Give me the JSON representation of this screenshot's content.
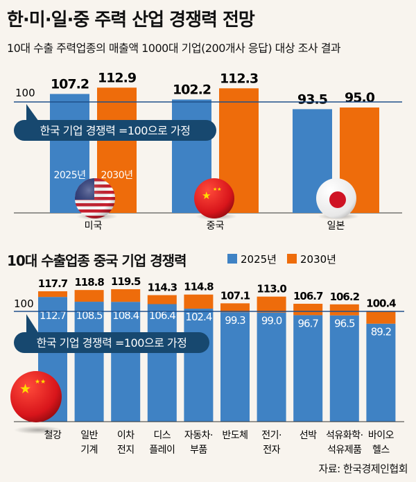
{
  "title": "한·미·일·중 주력 산업 경쟁력 전망",
  "subtitle": "10대 수출 주력업종의 매출액 1000대 기업(200개사 응답) 대상 조사 결과",
  "source": "자료: 한국경제인협회",
  "colors": {
    "y2025": "#3f82c4",
    "y2030": "#ee6c0b",
    "reference_line": "#1f4f8a",
    "callout": "#17486f"
  },
  "chart_data": [
    {
      "type": "bar",
      "title": "",
      "reference_line": {
        "value": 100,
        "label": "100"
      },
      "callout": "한국 기업 경쟁력 =100으로 가정",
      "categories": [
        "미국",
        "중국",
        "일본"
      ],
      "category_icons": [
        "us-flag-icon",
        "china-flag-icon",
        "japan-flag-icon"
      ],
      "series": [
        {
          "name": "2025년",
          "values": [
            107.2,
            102.2,
            93.5
          ]
        },
        {
          "name": "2030년",
          "values": [
            112.9,
            112.3,
            95.0
          ]
        }
      ],
      "value_labels": [
        [
          "107.2",
          "102.2",
          "93.5"
        ],
        [
          "112.9",
          "112.3",
          "95.0"
        ]
      ]
    },
    {
      "type": "bar",
      "title": "10대 수출업종 중국 기업 경쟁력",
      "legend": {
        "placement": "top-right",
        "entries": [
          "2025년",
          "2030년"
        ]
      },
      "reference_line": {
        "value": 100,
        "label": "100"
      },
      "callout": "한국 기업 경쟁력 =100으로 가정",
      "categories": [
        [
          "철강"
        ],
        [
          "일반",
          "기계"
        ],
        [
          "이차",
          "전지"
        ],
        [
          "디스",
          "플레이"
        ],
        [
          "자동차·",
          "부품"
        ],
        [
          "반도체"
        ],
        [
          "전기·",
          "전자"
        ],
        [
          "선박"
        ],
        [
          "석유화학·",
          "석유제품"
        ],
        [
          "바이오",
          "헬스"
        ]
      ],
      "series": [
        {
          "name": "2025년",
          "values": [
            112.7,
            108.5,
            108.4,
            106.4,
            102.4,
            99.3,
            99.0,
            96.7,
            96.5,
            89.2
          ]
        },
        {
          "name": "2030년",
          "values": [
            117.7,
            118.8,
            119.5,
            114.3,
            114.8,
            107.1,
            113.0,
            106.7,
            106.2,
            100.4
          ]
        }
      ],
      "value_labels": [
        [
          "112.7",
          "108.5",
          "108.4",
          "106.4",
          "102.4",
          "99.3",
          "99.0",
          "96.7",
          "96.5",
          "89.2"
        ],
        [
          "117.7",
          "118.8",
          "119.5",
          "114.3",
          "114.8",
          "107.1",
          "113.0",
          "106.7",
          "106.2",
          "100.4"
        ]
      ]
    }
  ]
}
